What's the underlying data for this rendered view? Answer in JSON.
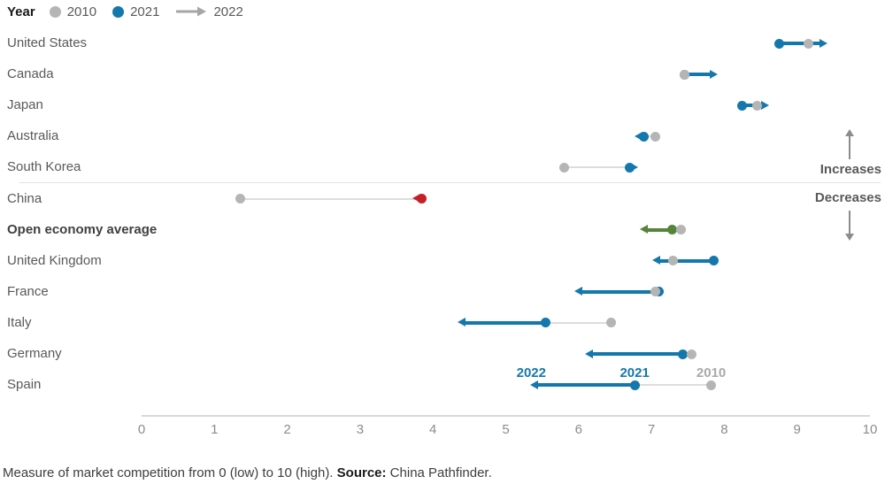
{
  "legend": {
    "title": "Year",
    "items": [
      {
        "label": "2010",
        "type": "dot",
        "color": "#b5b5b5"
      },
      {
        "label": "2021",
        "type": "dot",
        "color": "#1478ad"
      },
      {
        "label": "2022",
        "type": "arrow",
        "color": "#a6a6a6"
      }
    ]
  },
  "annotations": {
    "increases": "Increases",
    "decreases": "Decreases"
  },
  "axis": {
    "min": 0,
    "max": 10,
    "ticks": [
      "0",
      "1",
      "2",
      "3",
      "4",
      "5",
      "6",
      "7",
      "8",
      "9",
      "10"
    ]
  },
  "footer": {
    "text_before": "Measure of market competition from 0 (low) to 10 (high). ",
    "source_label": "Source:",
    "source_text": " China Pathfinder."
  },
  "colors": {
    "blue": "#1478ad",
    "gray_dot": "#b5b5b5",
    "red": "#c42127",
    "green": "#55843b",
    "connector": "#dcdcdc",
    "point_label_gray": "#a9a9a9"
  },
  "chart_data": {
    "type": "dumbbell-arrow",
    "title": "",
    "xlabel": "Measure of market competition from 0 (low) to 10 (high)",
    "xlim": [
      0,
      10
    ],
    "legend_position": "top-left",
    "grid": false,
    "series_meta": [
      "2010 = gray dot",
      "2021 = colored dot",
      "2022 = arrow tip"
    ],
    "rows": [
      {
        "label": "United States",
        "v2010": 9.15,
        "v2021": 8.75,
        "v2022": 9.4,
        "color": "#1478ad",
        "bold": false,
        "point_labels": false
      },
      {
        "label": "Canada",
        "v2010": 7.45,
        "v2021": 7.45,
        "v2022": 7.9,
        "color": "#1478ad",
        "bold": false,
        "point_labels": false
      },
      {
        "label": "Japan",
        "v2010": 8.45,
        "v2021": 8.25,
        "v2022": 8.6,
        "color": "#1478ad",
        "bold": false,
        "point_labels": false
      },
      {
        "label": "Australia",
        "v2010": 7.05,
        "v2021": 6.9,
        "v2022": 6.78,
        "color": "#1478ad",
        "bold": false,
        "point_labels": false
      },
      {
        "label": "South Korea",
        "v2010": 5.8,
        "v2021": 6.7,
        "v2022": 6.8,
        "color": "#1478ad",
        "bold": false,
        "point_labels": false
      },
      {
        "label": "China",
        "v2010": 1.35,
        "v2021": 3.85,
        "v2022": 3.73,
        "color": "#c42127",
        "bold": false,
        "point_labels": false
      },
      {
        "label": "Open economy average",
        "v2010": 7.4,
        "v2021": 7.28,
        "v2022": 6.85,
        "color": "#55843b",
        "bold": true,
        "point_labels": false
      },
      {
        "label": "United Kingdom",
        "v2010": 7.3,
        "v2021": 7.85,
        "v2022": 7.02,
        "color": "#1478ad",
        "bold": false,
        "point_labels": false
      },
      {
        "label": "France",
        "v2010": 7.05,
        "v2021": 7.1,
        "v2022": 5.95,
        "color": "#1478ad",
        "bold": false,
        "point_labels": false
      },
      {
        "label": "Italy",
        "v2010": 6.45,
        "v2021": 5.55,
        "v2022": 4.35,
        "color": "#1478ad",
        "bold": false,
        "point_labels": false
      },
      {
        "label": "Germany",
        "v2010": 7.55,
        "v2021": 7.43,
        "v2022": 6.1,
        "color": "#1478ad",
        "bold": false,
        "point_labels": false
      },
      {
        "label": "Spain",
        "v2010": 7.82,
        "v2021": 6.77,
        "v2022": 5.35,
        "color": "#1478ad",
        "bold": false,
        "point_labels": true
      }
    ],
    "point_label_names": {
      "y2022": "2022",
      "y2021": "2021",
      "y2010": "2010"
    }
  }
}
